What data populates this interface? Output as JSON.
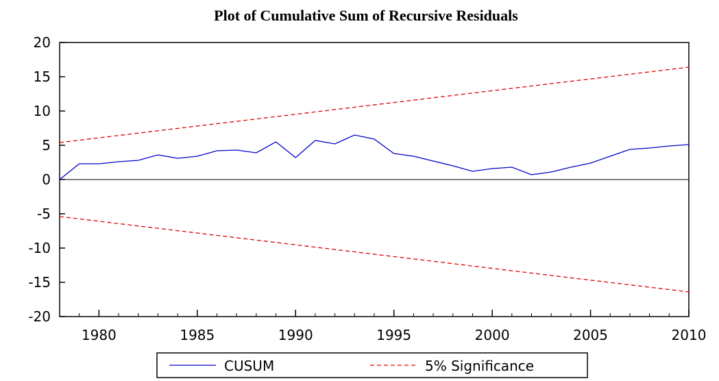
{
  "chart_data": {
    "type": "line",
    "title": "Plot of Cumulative Sum of Recursive Residuals",
    "x": [
      1978,
      1979,
      1980,
      1981,
      1982,
      1983,
      1984,
      1985,
      1986,
      1987,
      1988,
      1989,
      1990,
      1991,
      1992,
      1993,
      1994,
      1995,
      1996,
      1997,
      1998,
      1999,
      2000,
      2001,
      2002,
      2003,
      2004,
      2005,
      2006,
      2007,
      2008,
      2009,
      2010
    ],
    "series": [
      {
        "name": "CUSUM",
        "color": "#0000cc",
        "dash": false,
        "values": [
          0,
          2.3,
          2.3,
          2.6,
          2.8,
          3.6,
          3.1,
          3.4,
          4.2,
          4.3,
          3.9,
          5.5,
          3.2,
          5.7,
          5.2,
          6.5,
          5.9,
          3.8,
          3.4,
          2.7,
          2.0,
          1.2,
          1.6,
          1.8,
          0.7,
          1.1,
          1.8,
          2.4,
          3.4,
          4.4,
          4.6,
          4.9,
          5.1
        ]
      },
      {
        "name": "5% Significance",
        "color": "#e00000",
        "dash": true,
        "x": [
          1978,
          2010
        ],
        "upper": [
          5.4,
          16.4
        ],
        "lower": [
          -5.4,
          -16.4
        ]
      }
    ],
    "xlim": [
      1978,
      2010
    ],
    "xticks": [
      1980,
      1985,
      1990,
      1995,
      2000,
      2005,
      2010
    ],
    "ylim": [
      -20,
      20
    ],
    "yticks": [
      -20,
      -15,
      -10,
      -5,
      0,
      5,
      10,
      15,
      20
    ],
    "zero_line": true,
    "legend": "bottom"
  }
}
